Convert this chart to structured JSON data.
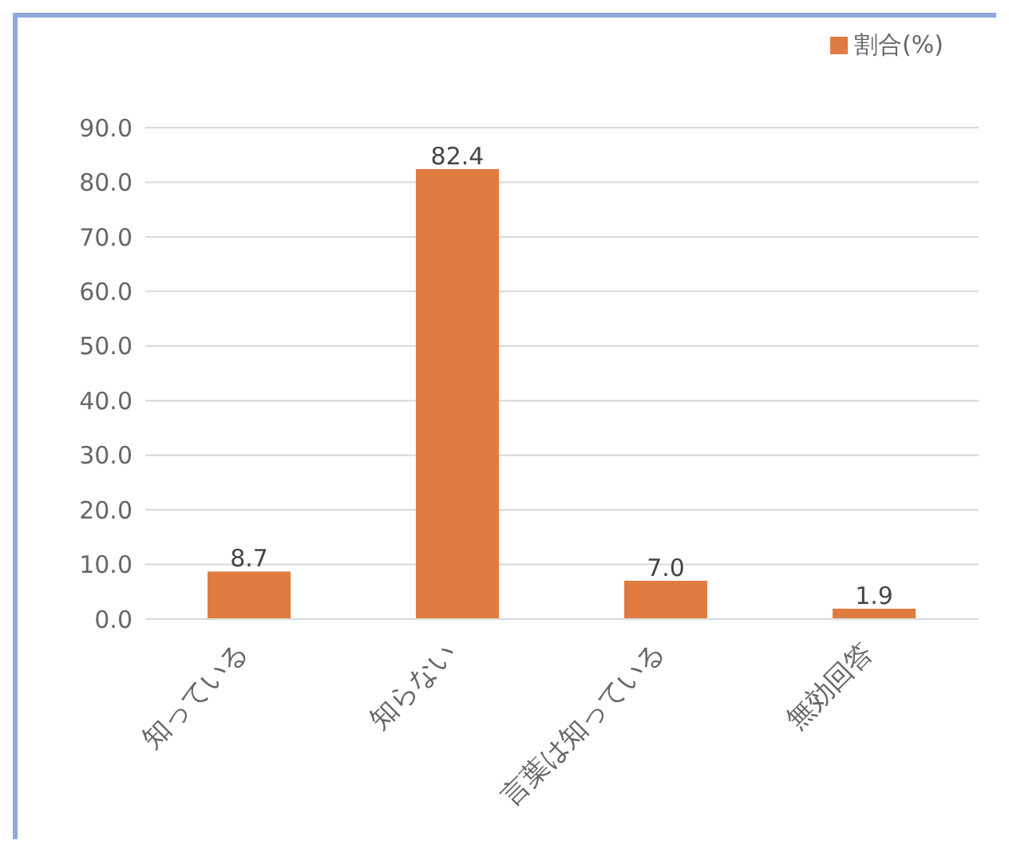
{
  "chart_data": {
    "type": "bar",
    "categories": [
      "知っている",
      "知らない",
      "言葉は知っている",
      "無効回答"
    ],
    "series": [
      {
        "name": "割合(%)",
        "color": "#e07b42",
        "values": [
          8.7,
          82.4,
          7.0,
          1.9
        ],
        "value_labels": [
          "8.7",
          "82.4",
          "7.0",
          "1.9"
        ]
      }
    ],
    "ylim": [
      0,
      90
    ],
    "yticks": [
      {
        "value": 0,
        "label": "0.0"
      },
      {
        "value": 10,
        "label": "10.0"
      },
      {
        "value": 20,
        "label": "20.0"
      },
      {
        "value": 30,
        "label": "30.0"
      },
      {
        "value": 40,
        "label": "40.0"
      },
      {
        "value": 50,
        "label": "50.0"
      },
      {
        "value": 60,
        "label": "60.0"
      },
      {
        "value": 70,
        "label": "70.0"
      },
      {
        "value": 80,
        "label": "80.0"
      },
      {
        "value": 90,
        "label": "90.0"
      }
    ],
    "grid": "y",
    "legend": "top right"
  }
}
